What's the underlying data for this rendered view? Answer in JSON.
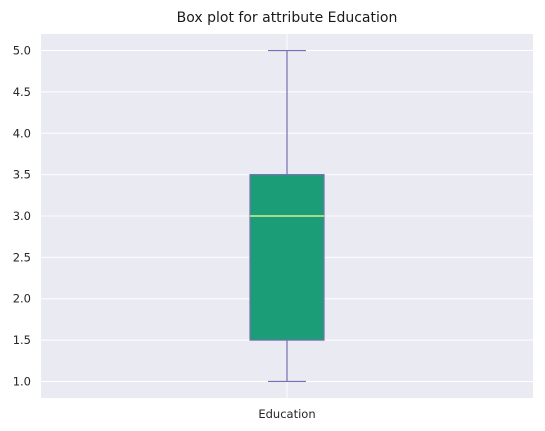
{
  "chart_data": {
    "type": "box",
    "title": "Box plot for attribute Education",
    "xlabel": "",
    "ylabel": "",
    "categories": [
      "Education"
    ],
    "boxes": [
      {
        "category": "Education",
        "whisker_low": 1.0,
        "q1": 1.5,
        "median": 3.0,
        "q3": 3.5,
        "whisker_high": 5.0
      }
    ],
    "ylim": [
      0.8,
      5.2
    ],
    "yticks": [
      1.0,
      1.5,
      2.0,
      2.5,
      3.0,
      3.5,
      4.0,
      4.5,
      5.0
    ],
    "ytick_labels": [
      "1.0",
      "1.5",
      "2.0",
      "2.5",
      "3.0",
      "3.5",
      "4.0",
      "4.5",
      "5.0"
    ],
    "grid": true,
    "legend": "none",
    "colors": {
      "plot_background": "#eaeaf2",
      "grid": "#ffffff",
      "box_fill": "#1b9e77",
      "box_edge": "#7570b3",
      "whisker": "#7570b3",
      "median": "#d4f08c"
    }
  }
}
